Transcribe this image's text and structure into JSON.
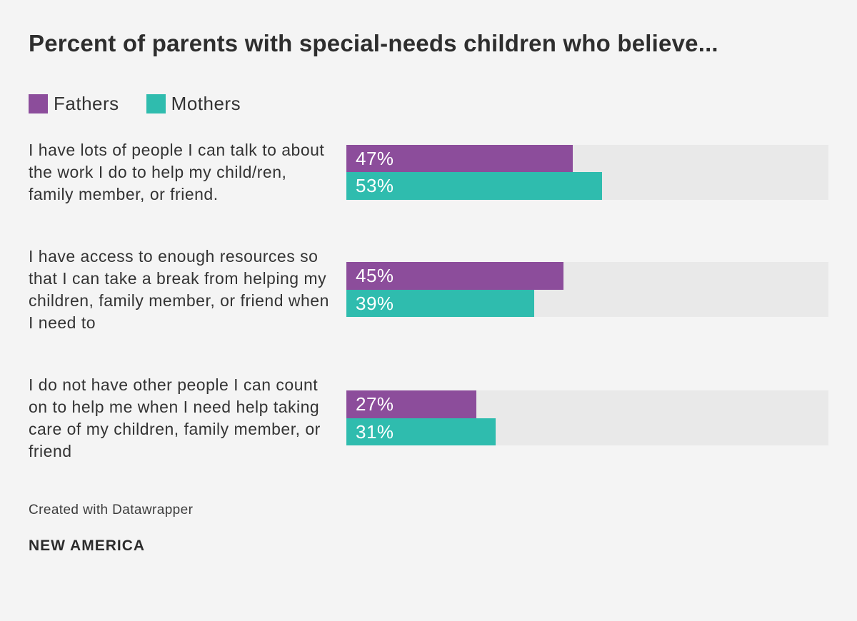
{
  "chart": {
    "title": "Percent of parents with special-needs children who believe...",
    "background_color": "#f4f4f4",
    "track_color": "#e9e9e9",
    "title_color": "#2e2e2e",
    "label_color": "#333333",
    "value_label_color": "#ffffff"
  },
  "legend": {
    "items": [
      {
        "label": "Fathers",
        "color": "#8c4d9b"
      },
      {
        "label": "Mothers",
        "color": "#2fbcae"
      }
    ]
  },
  "chart_data": {
    "type": "bar",
    "orientation": "horizontal",
    "title": "Percent of parents with special-needs children who believe...",
    "categories": [
      "I have lots of people I can talk to about the work I do to help my child/ren, family member, or friend.",
      "I have access to enough resources so that I can take a break from helping my children, family member, or friend when I need to",
      "I do not have other people I can count on to help me when I need help taking care of my children, family member, or friend"
    ],
    "series": [
      {
        "name": "Fathers",
        "color": "#8c4d9b",
        "values": [
          47,
          45,
          27
        ]
      },
      {
        "name": "Mothers",
        "color": "#2fbcae",
        "values": [
          53,
          39,
          31
        ]
      }
    ],
    "value_suffix": "%",
    "xlim": [
      0,
      100
    ],
    "grid": false,
    "legend_position": "top-left"
  },
  "footer": {
    "attribution": "Created with Datawrapper",
    "logo": "NEW AMERICA"
  }
}
